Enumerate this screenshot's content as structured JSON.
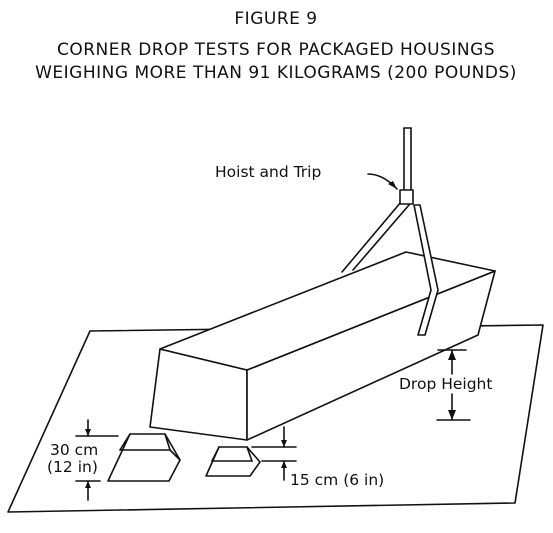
{
  "figure": {
    "number": "FIGURE 9",
    "title_line1": "CORNER DROP TESTS FOR PACKAGED HOUSINGS",
    "title_line2": "WEIGHING MORE THAN 91 KILOGRAMS (200 POUNDS)"
  },
  "labels": {
    "hoist": "Hoist and Trip",
    "drop_height": "Drop Height",
    "block_tall_metric": "30 cm",
    "block_tall_imperial": "(12 in)",
    "block_short": "15 cm (6 in)"
  }
}
